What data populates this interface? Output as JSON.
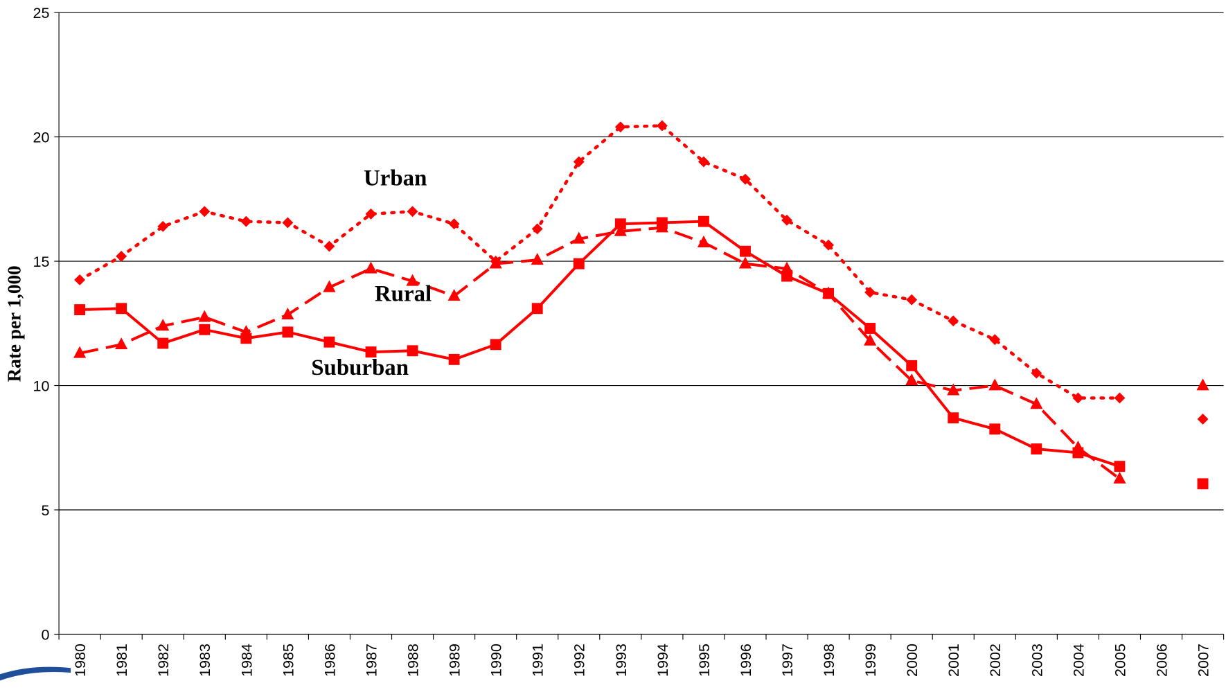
{
  "chart_data": {
    "type": "line",
    "ylabel": "Rate per 1,000",
    "categories": [
      "1980",
      "1981",
      "1982",
      "1983",
      "1984",
      "1985",
      "1986",
      "1987",
      "1988",
      "1989",
      "1990",
      "1991",
      "1992",
      "1993",
      "1994",
      "1995",
      "1996",
      "1997",
      "1998",
      "1999",
      "2000",
      "2001",
      "2002",
      "2003",
      "2004",
      "2005",
      "2006",
      "2007"
    ],
    "ylim": [
      0,
      25
    ],
    "yticks": [
      0,
      5,
      10,
      15,
      20,
      25
    ],
    "grid": true,
    "series": [
      {
        "name": "Urban",
        "color": "#ff0000",
        "marker": "diamond",
        "line_style": "dotted",
        "values": [
          14.25,
          15.2,
          16.4,
          17.0,
          16.6,
          16.55,
          15.6,
          16.9,
          17.0,
          16.5,
          15.0,
          16.3,
          19.0,
          20.4,
          20.45,
          19.0,
          18.3,
          16.65,
          15.65,
          13.75,
          13.45,
          12.6,
          11.85,
          10.5,
          9.5,
          9.5,
          null,
          8.65
        ]
      },
      {
        "name": "Rural",
        "color": "#ff0000",
        "marker": "triangle",
        "line_style": "dashed",
        "values": [
          11.3,
          11.65,
          12.4,
          12.75,
          12.15,
          12.85,
          13.95,
          14.7,
          14.2,
          13.6,
          14.9,
          15.05,
          15.9,
          16.2,
          16.35,
          15.75,
          14.9,
          14.7,
          13.7,
          11.8,
          10.2,
          9.8,
          10.0,
          9.25,
          7.5,
          6.25,
          null,
          10.0
        ]
      },
      {
        "name": "Suburban",
        "color": "#ff0000",
        "marker": "square",
        "line_style": "solid",
        "values": [
          13.05,
          13.1,
          11.7,
          12.25,
          11.9,
          12.15,
          11.75,
          11.35,
          11.4,
          11.05,
          11.65,
          13.1,
          14.9,
          16.5,
          16.55,
          16.6,
          15.4,
          14.4,
          13.7,
          12.3,
          10.8,
          8.7,
          8.25,
          7.45,
          7.3,
          6.75,
          null,
          6.05
        ]
      }
    ]
  }
}
